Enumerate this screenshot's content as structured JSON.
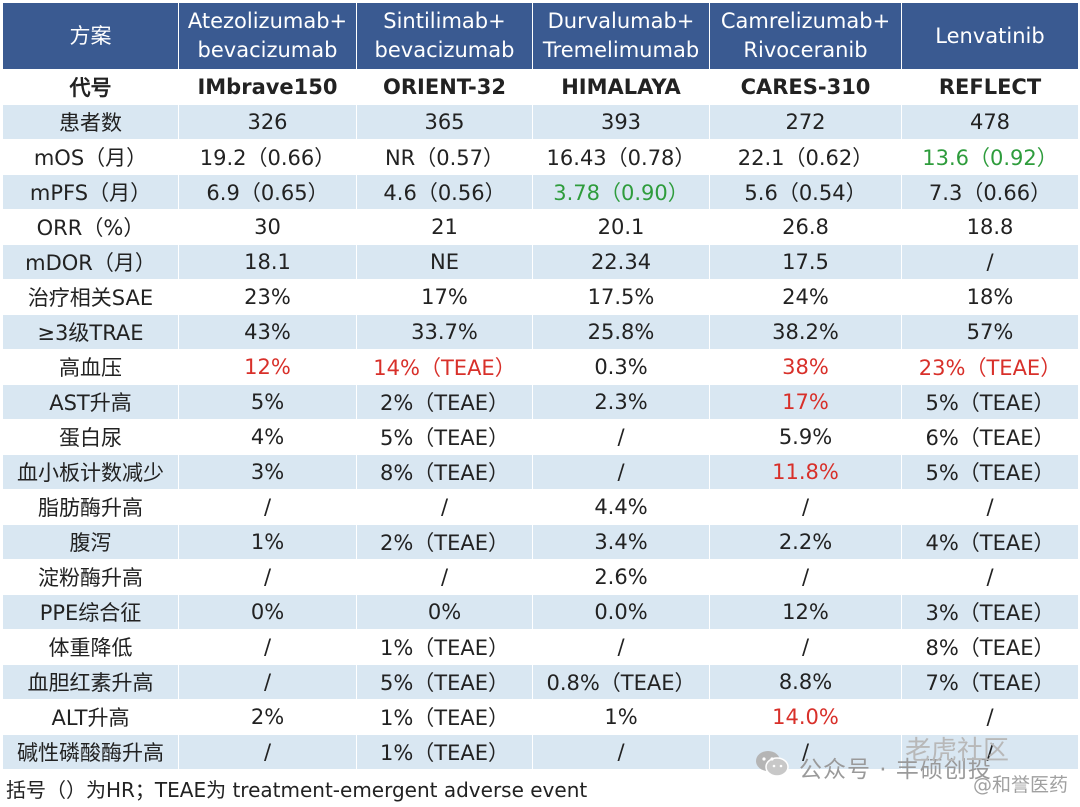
{
  "table": {
    "headers": [
      "方案",
      [
        "Atezolizumab+",
        "bevacizumab"
      ],
      [
        "Sintilimab+",
        "bevacizumab"
      ],
      [
        "Durvalumab+",
        "Tremelimumab"
      ],
      [
        "Camrelizumab+",
        "Rivoceranib"
      ],
      "Lenvatinib"
    ],
    "rows": [
      {
        "label": "代号",
        "cells": [
          "IMbrave150",
          "ORIENT-32",
          "HIMALAYA",
          "CARES-310",
          "REFLECT"
        ]
      },
      {
        "label": "患者数",
        "cells": [
          "326",
          "365",
          "393",
          "272",
          "478"
        ]
      },
      {
        "label": "mOS（月）",
        "cells": [
          "19.2（0.66）",
          "NR（0.57）",
          "16.43（0.78）",
          "22.1（0.62）",
          "13.6（0.92）"
        ]
      },
      {
        "label": "mPFS（月）",
        "cells": [
          "6.9（0.65）",
          "4.6（0.56）",
          "3.78（0.90）",
          "5.6（0.54）",
          "7.3（0.66）"
        ]
      },
      {
        "label": "ORR（%）",
        "cells": [
          "30",
          "21",
          "20.1",
          "26.8",
          "18.8"
        ]
      },
      {
        "label": "mDOR（月）",
        "cells": [
          "18.1",
          "NE",
          "22.34",
          "17.5",
          "/"
        ]
      },
      {
        "label": "治疗相关SAE",
        "cells": [
          "23%",
          "17%",
          "17.5%",
          "24%",
          "18%"
        ]
      },
      {
        "label": "≥3级TRAE",
        "cells": [
          "43%",
          "33.7%",
          "25.8%",
          "38.2%",
          "57%"
        ]
      },
      {
        "label": "高血压",
        "cells": [
          "12%",
          "14%（TEAE）",
          "0.3%",
          "38%",
          "23%（TEAE）"
        ]
      },
      {
        "label": "AST升高",
        "cells": [
          "5%",
          "2%（TEAE）",
          "2.3%",
          "17%",
          "5%（TEAE）"
        ]
      },
      {
        "label": "蛋白尿",
        "cells": [
          "4%",
          "5%（TEAE）",
          "/",
          "5.9%",
          "6%（TEAE）"
        ]
      },
      {
        "label": "血小板计数减少",
        "cells": [
          "3%",
          "8%（TEAE）",
          "/",
          "11.8%",
          "5%（TEAE）"
        ]
      },
      {
        "label": "脂肪酶升高",
        "cells": [
          "/",
          "/",
          "4.4%",
          "/",
          "/"
        ]
      },
      {
        "label": "腹泻",
        "cells": [
          "1%",
          "2%（TEAE）",
          "3.4%",
          "2.2%",
          "4%（TEAE）"
        ]
      },
      {
        "label": "淀粉酶升高",
        "cells": [
          "/",
          "/",
          "2.6%",
          "/",
          "/"
        ]
      },
      {
        "label": "PPE综合征",
        "cells": [
          "0%",
          "0%",
          "0.0%",
          "12%",
          "3%（TEAE）"
        ]
      },
      {
        "label": "体重降低",
        "cells": [
          "/",
          "1%（TEAE）",
          "/",
          "/",
          "8%（TEAE）"
        ]
      },
      {
        "label": "血胆红素升高",
        "cells": [
          "/",
          "5%（TEAE）",
          "0.8%（TEAE）",
          "8.8%",
          "7%（TEAE）"
        ]
      },
      {
        "label": "ALT升高",
        "cells": [
          "2%",
          "1%（TEAE）",
          "1%",
          "14.0%",
          "/"
        ]
      },
      {
        "label": "碱性磷酸酶升高",
        "cells": [
          "/",
          "1%（TEAE）",
          "/",
          "/",
          "/"
        ]
      }
    ],
    "highlights": {
      "red": [
        [
          8,
          0
        ],
        [
          8,
          1
        ],
        [
          8,
          3
        ],
        [
          8,
          4
        ],
        [
          9,
          3
        ],
        [
          11,
          3
        ],
        [
          18,
          3
        ]
      ],
      "green": [
        [
          2,
          4
        ],
        [
          3,
          2
        ]
      ]
    },
    "colors": {
      "header_bg": "#3a5a91",
      "stripe": "#d9e7f2",
      "red": "#d8302a",
      "green": "#2e9c3c"
    }
  },
  "footnote": "括号（）为HR；TEAE为 treatment-emergent adverse event",
  "watermark": {
    "icon": "wechat-icon",
    "account": "公众号 · 丰硕创投",
    "brand1": "老虎社区",
    "brand2": "@和誉医药"
  }
}
